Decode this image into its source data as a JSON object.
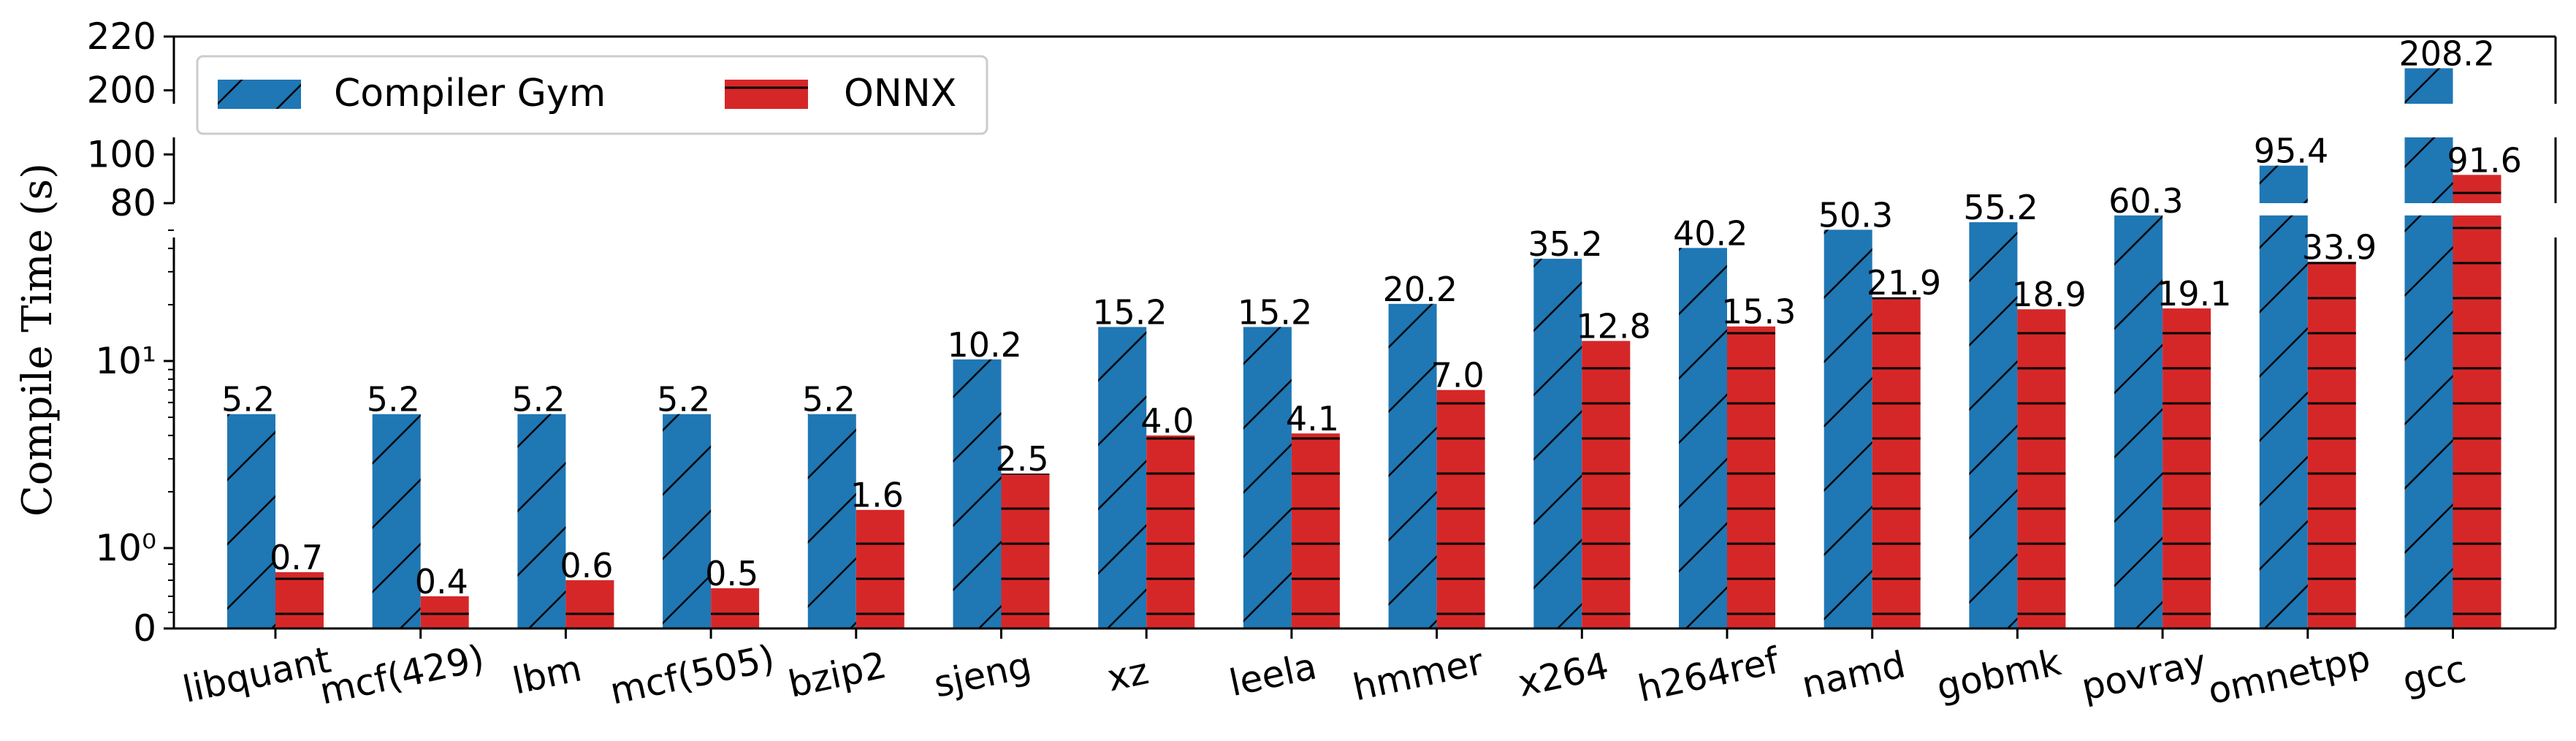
{
  "chart_data": {
    "type": "bar",
    "ylabel": "Compile Time (s)",
    "yscale": "broken axis: log lower panel, linear upper panels",
    "categories": [
      "libquant",
      "mcf(429)",
      "lbm",
      "mcf(505)",
      "bzip2",
      "sjeng",
      "xz",
      "leela",
      "hmmer",
      "x264",
      "h264ref",
      "namd",
      "gobmk",
      "povray",
      "omnetpp",
      "gcc"
    ],
    "series": [
      {
        "name": "Compiler Gym",
        "color": "#1f77b4",
        "hatch": "diagonal",
        "values": [
          5.2,
          5.2,
          5.2,
          5.2,
          5.2,
          10.2,
          15.2,
          15.2,
          20.2,
          35.2,
          40.2,
          50.3,
          55.2,
          60.3,
          95.4,
          208.2
        ]
      },
      {
        "name": "ONNX",
        "color": "#d62728",
        "hatch": "horizontal",
        "values": [
          0.7,
          0.4,
          0.6,
          0.5,
          1.6,
          2.5,
          4.0,
          4.1,
          7.0,
          12.8,
          15.3,
          21.9,
          18.9,
          19.1,
          33.9,
          91.6
        ]
      }
    ],
    "data_labels": {
      "compiler_gym": [
        "5.2",
        "5.2",
        "5.2",
        "5.2",
        "5.2",
        "10.2",
        "15.2",
        "15.2",
        "20.2",
        "35.2",
        "40.2",
        "50.3",
        "55.2",
        "60.3",
        "95.4",
        "208.2"
      ],
      "onnx": [
        "0.7",
        "0.4",
        "0.6",
        "0.5",
        "1.6",
        "2.5",
        "4.0",
        "4.1",
        "7.0",
        "12.8",
        "15.3",
        "21.9",
        "18.9",
        "19.1",
        "33.9",
        "91.6"
      ]
    },
    "panels": [
      {
        "name": "top",
        "scale": "linear",
        "ylim": [
          195,
          220
        ],
        "ticks": [
          {
            "v": 200,
            "label": "200"
          },
          {
            "v": 220,
            "label": "220"
          }
        ]
      },
      {
        "name": "middle",
        "scale": "linear",
        "ylim": [
          80,
          107
        ],
        "ticks": [
          {
            "v": 80,
            "label": "80"
          },
          {
            "v": 100,
            "label": "100"
          }
        ]
      },
      {
        "name": "bottom",
        "scale": "log",
        "ylim": [
          0,
          60
        ],
        "ticks": [
          {
            "v": 0,
            "label": "0"
          },
          {
            "v": 1,
            "label": "10⁰"
          },
          {
            "v": 10,
            "label": "10¹"
          }
        ]
      }
    ],
    "legend": {
      "placement": "top-left",
      "columns": 2,
      "entries": [
        "Compiler Gym",
        "ONNX"
      ]
    },
    "grid": false
  }
}
